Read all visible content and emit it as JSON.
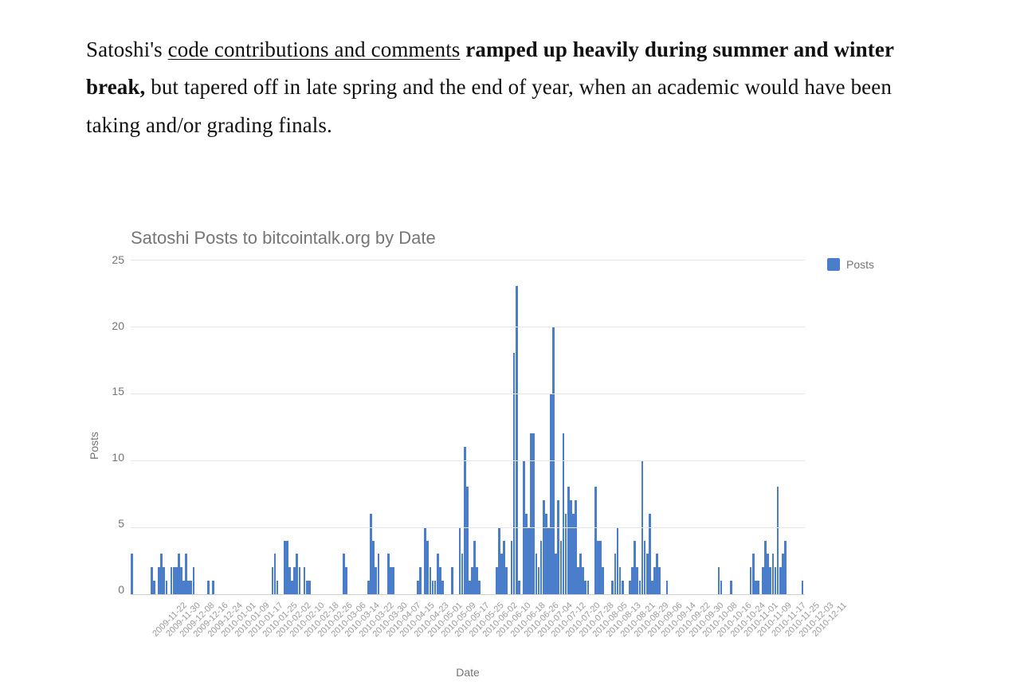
{
  "prose": {
    "t1": "Satoshi's ",
    "t2": "code contributions and comments",
    "t3": " ramped up heavily during summer and winter break,",
    "t4": " but tapered off in late spring and the end of year, when an academic would have been taking and/or grading finals."
  },
  "chart": {
    "type": "bar",
    "title": "Satoshi Posts to bitcointalk.org by Date",
    "yaxis_label": "Posts",
    "xaxis_label": "Date",
    "legend_label": "Posts",
    "ylim_max": 25,
    "yticks": [
      "25",
      "20",
      "15",
      "10",
      "5",
      "0"
    ],
    "bar_color": "#4a7ecb",
    "grid_color": "#e6e6e6",
    "axis_color": "#d0d0d0",
    "background_color": "#ffffff",
    "text_color": "#757575",
    "title_fontsize": 22,
    "label_fontsize": 14,
    "xtick_fontsize": 11,
    "xlabels": [
      "2009-11-22",
      "2009-11-30",
      "2009-12-08",
      "2009-12-16",
      "2009-12-24",
      "2010-01-01",
      "2010-01-09",
      "2010-01-17",
      "2010-01-25",
      "2010-02-02",
      "2010-02-10",
      "2010-02-18",
      "2010-02-26",
      "2010-03-06",
      "2010-03-14",
      "2010-03-22",
      "2010-03-30",
      "2010-04-07",
      "2010-04-15",
      "2010-04-23",
      "2010-05-01",
      "2010-05-09",
      "2010-05-17",
      "2010-05-25",
      "2010-06-02",
      "2010-06-10",
      "2010-06-18",
      "2010-06-26",
      "2010-07-04",
      "2010-07-12",
      "2010-07-20",
      "2010-07-28",
      "2010-08-05",
      "2010-08-13",
      "2010-08-21",
      "2010-08-29",
      "2010-09-06",
      "2010-09-14",
      "2010-09-22",
      "2010-09-30",
      "2010-10-08",
      "2010-10-16",
      "2010-10-24",
      "2010-11-01",
      "2010-11-09",
      "2010-11-17",
      "2010-11-25",
      "2010-12-03",
      "2010-12-11"
    ],
    "values": [
      3,
      0,
      0,
      0,
      0,
      0,
      0,
      0,
      2,
      1,
      0,
      2,
      3,
      2,
      1,
      0,
      2,
      2,
      2,
      3,
      2,
      1,
      3,
      1,
      1,
      2,
      0,
      0,
      0,
      0,
      0,
      1,
      0,
      1,
      0,
      0,
      0,
      0,
      0,
      0,
      0,
      0,
      0,
      0,
      0,
      0,
      0,
      0,
      0,
      0,
      0,
      0,
      0,
      0,
      0,
      0,
      0,
      2,
      3,
      1,
      0,
      0,
      4,
      4,
      2,
      1,
      2,
      3,
      2,
      0,
      2,
      1,
      1,
      0,
      0,
      0,
      0,
      0,
      0,
      0,
      0,
      0,
      0,
      0,
      0,
      0,
      3,
      2,
      0,
      0,
      0,
      0,
      0,
      0,
      0,
      0,
      1,
      6,
      4,
      2,
      3,
      0,
      0,
      0,
      3,
      2,
      2,
      0,
      0,
      0,
      0,
      0,
      0,
      0,
      0,
      0,
      1,
      2,
      0,
      5,
      4,
      2,
      1,
      1,
      3,
      2,
      1,
      0,
      0,
      0,
      2,
      0,
      0,
      5,
      3,
      11,
      8,
      1,
      2,
      4,
      2,
      1,
      0,
      0,
      0,
      0,
      0,
      0,
      2,
      5,
      3,
      4,
      2,
      0,
      4,
      18,
      23,
      1,
      0,
      10,
      6,
      5,
      12,
      12,
      3,
      2,
      4,
      7,
      6,
      5,
      15,
      20,
      3,
      7,
      4,
      12,
      6,
      8,
      7,
      6,
      7,
      2,
      3,
      2,
      1,
      1,
      0,
      0,
      8,
      4,
      4,
      2,
      0,
      0,
      0,
      1,
      3,
      5,
      2,
      1,
      0,
      0,
      1,
      2,
      4,
      2,
      1,
      10,
      4,
      3,
      6,
      1,
      2,
      3,
      2,
      0,
      0,
      1,
      0,
      0,
      0,
      0,
      0,
      0,
      0,
      0,
      0,
      0,
      0,
      0,
      0,
      0,
      0,
      0,
      0,
      0,
      0,
      0,
      2,
      1,
      0,
      0,
      0,
      1,
      0,
      0,
      0,
      0,
      0,
      0,
      0,
      2,
      3,
      1,
      1,
      0,
      2,
      4,
      3,
      2,
      3,
      2,
      8,
      2,
      3,
      4,
      0,
      0,
      0,
      0,
      0,
      0,
      1
    ]
  }
}
